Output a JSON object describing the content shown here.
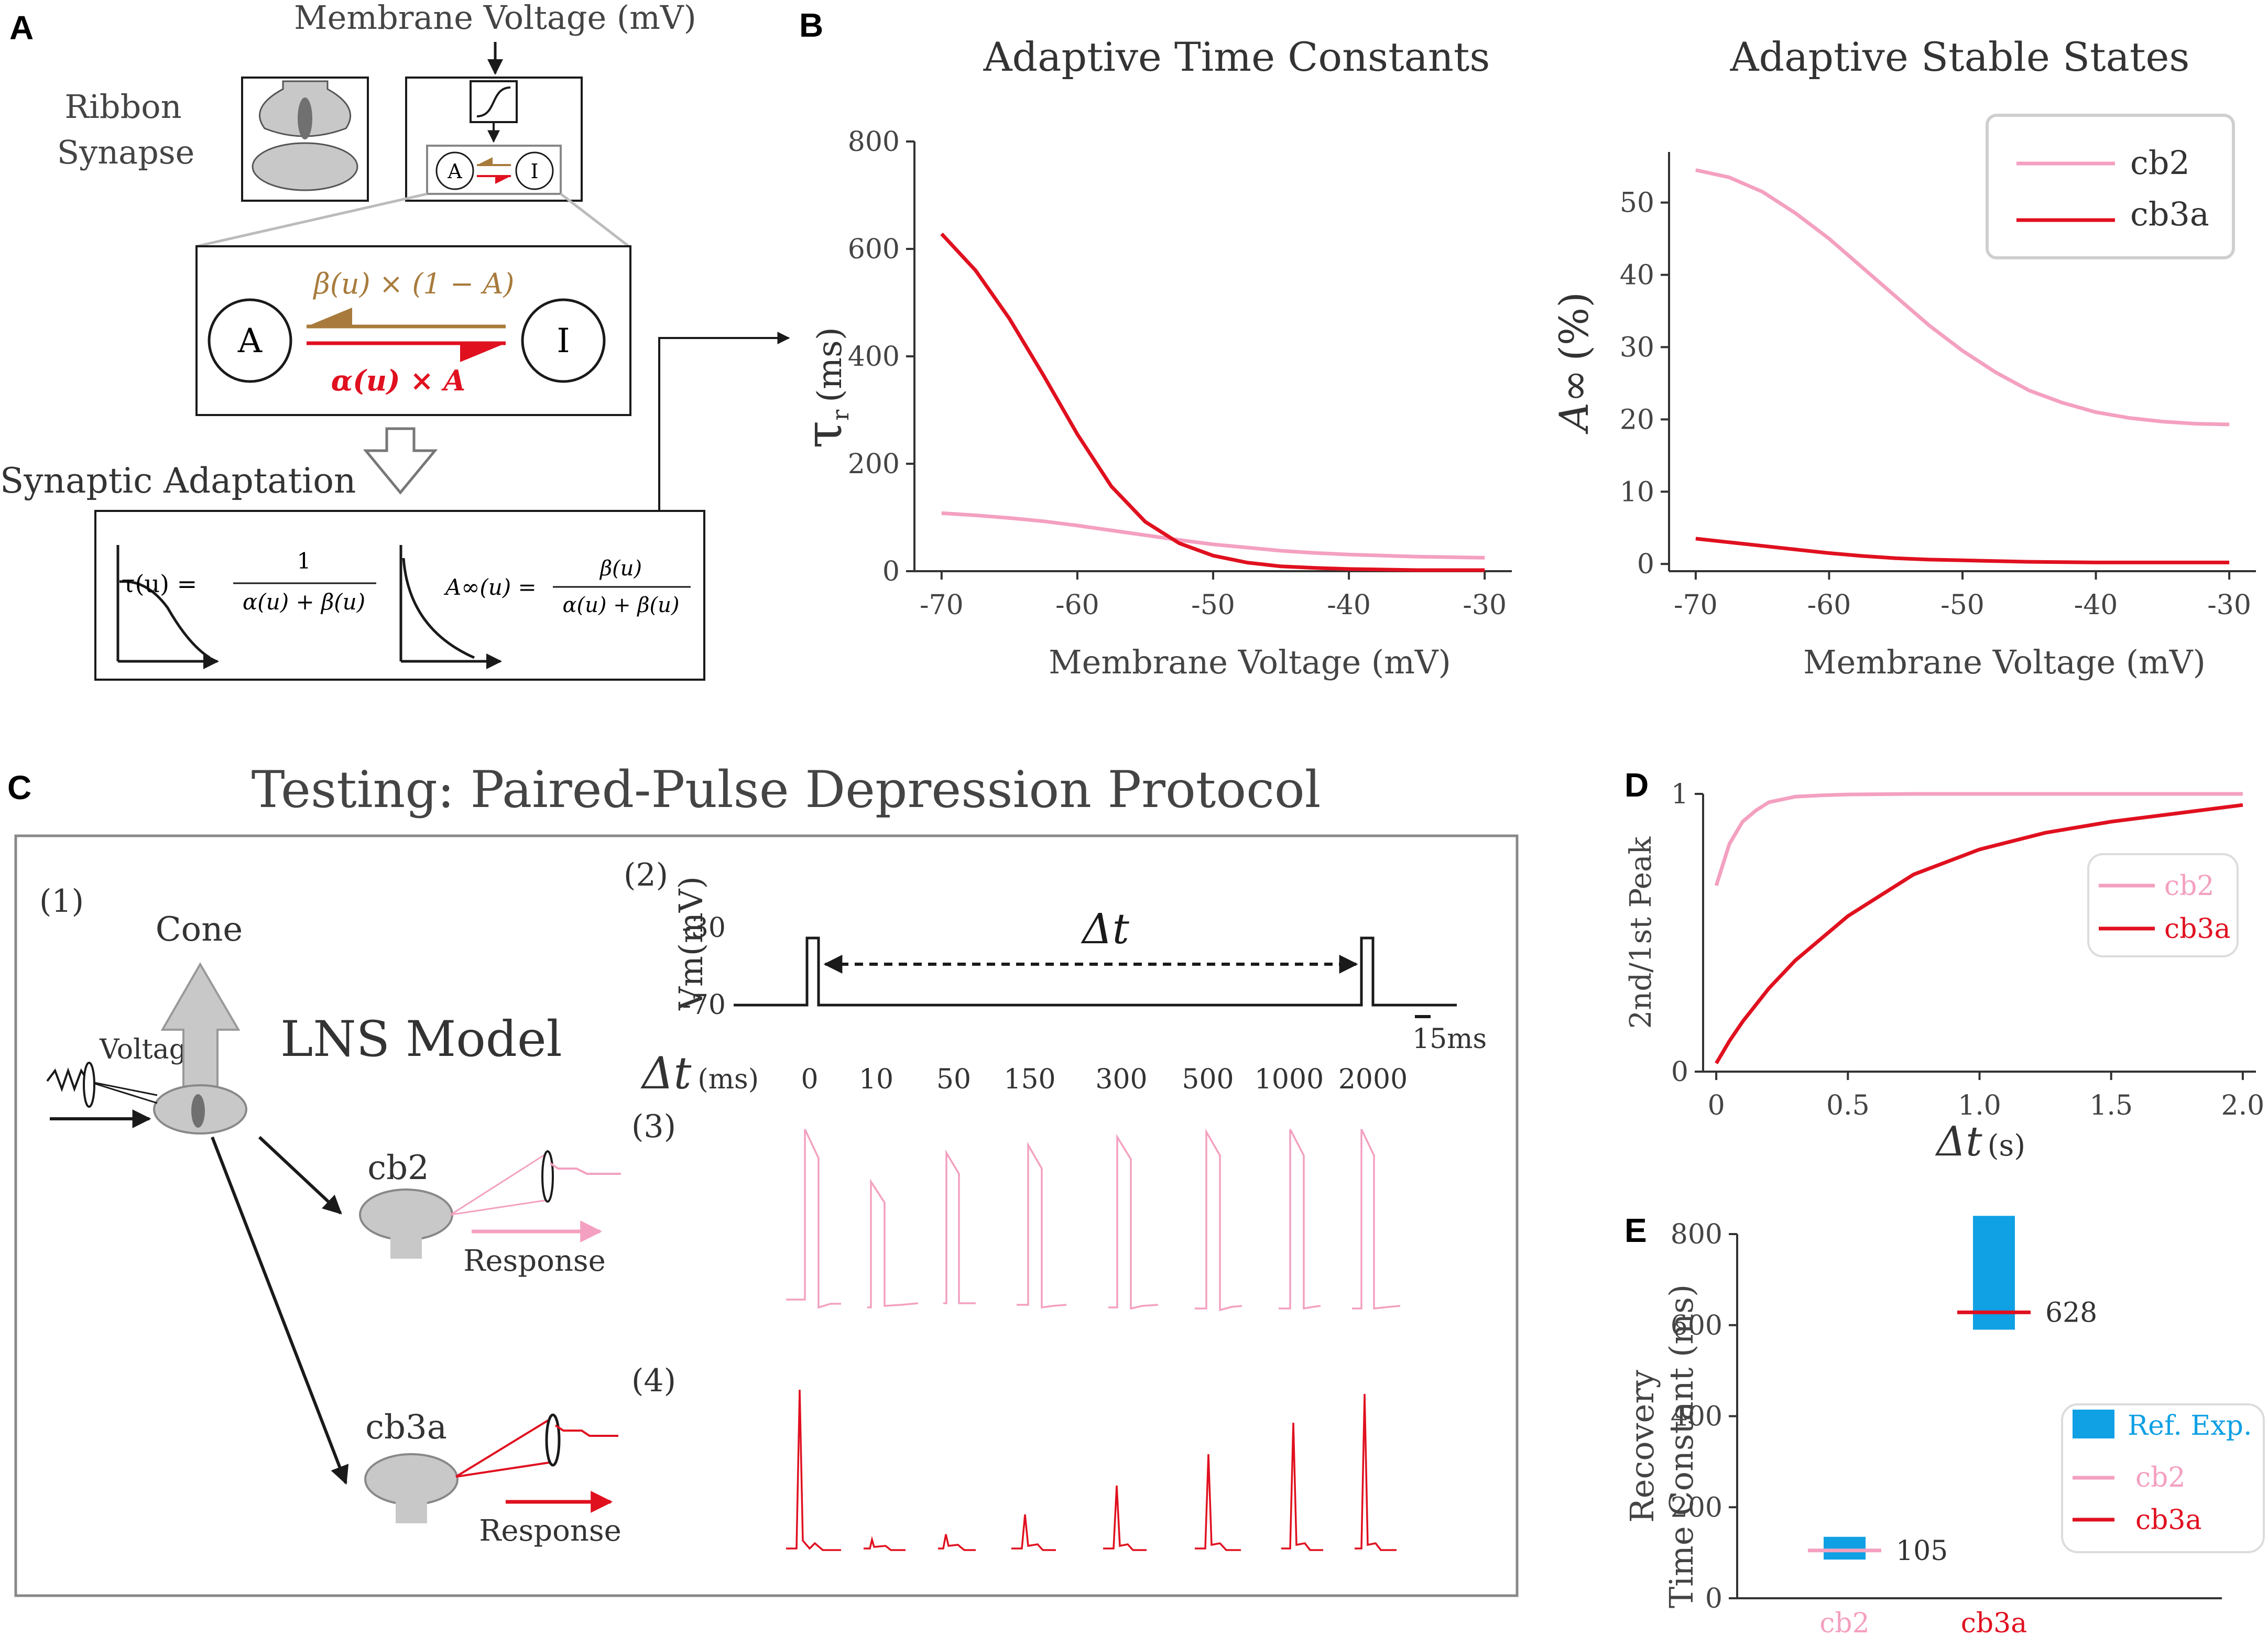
{
  "colors": {
    "cb2": "#f4a0c0",
    "cb3a": "#e0101f",
    "beta": "#a87b3c",
    "ref": "#10a0e4",
    "black": "#1a1a1a",
    "gray": "#c8c8c8"
  },
  "panelA": {
    "letter": "A",
    "membrane_voltage": "Membrane Voltage (mV)",
    "ribbon_line1": "Ribbon",
    "ribbon_line2": "Synapse",
    "state_a": "A",
    "state_i": "I",
    "beta_expr": "β(u) × (1 − A)",
    "alpha_expr": "α(u) × A",
    "synaptic_adaptation": "Synaptic Adaptation",
    "tau_lhs": "τ(u) =",
    "tau_num": "1",
    "tau_den": "α(u) + β(u)",
    "ainf_lhs": "A∞(u) =",
    "ainf_num": "β(u)",
    "ainf_den": "α(u) + β(u)"
  },
  "panelB": {
    "letter": "B",
    "tau_title": "Adaptive Time Constants",
    "tau_ylabel_sym": "τ",
    "tau_ylabel_sub": "r",
    "tau_ylabel_unit": "(ms)",
    "state_title": "Adaptive Stable States",
    "state_ylabel_sym": "A∞",
    "state_ylabel_unit": "(%)",
    "xlabel": "Membrane Voltage (mV)",
    "legend": [
      "cb2",
      "cb3a"
    ]
  },
  "panelC": {
    "letter": "C",
    "title": "Testing: Paired-Pulse Depression Protocol",
    "sub1": "(1)",
    "sub2": "(2)",
    "sub3": "(3)",
    "sub4": "(4)",
    "cone": "Cone",
    "voltage": "Voltage",
    "lns": "LNS Model",
    "cb2": "cb2",
    "cb3a": "cb3a",
    "response": "Response",
    "vm_label": "Vm(mV)",
    "vm_high": "-30",
    "vm_low": "-70",
    "delta_t": "Δt",
    "scale_label": "15ms",
    "dt_axis_sym": "Δt",
    "dt_axis_unit": "(ms)",
    "dt_values": [
      "0",
      "10",
      "50",
      "150",
      "300",
      "500",
      "1000",
      "2000"
    ]
  },
  "panelD": {
    "letter": "D",
    "ylabel": "2nd/1st Peak",
    "xlabel_sym": "Δt",
    "xlabel_unit": "(s)",
    "legend": [
      "cb2",
      "cb3a"
    ]
  },
  "panelE": {
    "letter": "E",
    "ylabel_line1": "Recovery",
    "ylabel_line2": "Time Constant (ms)",
    "legend": [
      "Ref. Exp.",
      "cb2",
      "cb3a"
    ]
  },
  "chart_data": [
    {
      "id": "tau",
      "type": "line",
      "title": "Adaptive Time Constants",
      "xlabel": "Membrane Voltage (mV)",
      "ylabel": "τr (ms)",
      "xlim": [
        -72,
        -28
      ],
      "ylim": [
        0,
        800
      ],
      "xticks": [
        -70,
        -60,
        -50,
        -40,
        -30
      ],
      "yticks": [
        0,
        200,
        400,
        600,
        800
      ],
      "x": [
        -70,
        -67.5,
        -65,
        -62.5,
        -60,
        -57.5,
        -55,
        -52.5,
        -50,
        -47.5,
        -45,
        -42.5,
        -40,
        -37.5,
        -35,
        -32.5,
        -30
      ],
      "series": [
        {
          "name": "cb2",
          "values": [
            108,
            104,
            99,
            93,
            85,
            76,
            67,
            58,
            50,
            44,
            38,
            34,
            31,
            29,
            27,
            26,
            25
          ]
        },
        {
          "name": "cb3a",
          "values": [
            628,
            560,
            470,
            365,
            255,
            158,
            92,
            52,
            29,
            16,
            9,
            6,
            4,
            3,
            2,
            2,
            2
          ]
        }
      ]
    },
    {
      "id": "ainf",
      "type": "line",
      "title": "Adaptive Stable States",
      "xlabel": "Membrane Voltage (mV)",
      "ylabel": "A∞ (%)",
      "xlim": [
        -72,
        -28
      ],
      "ylim": [
        -1,
        57
      ],
      "xticks": [
        -70,
        -60,
        -50,
        -40,
        -30
      ],
      "yticks": [
        0,
        10,
        20,
        30,
        40,
        50
      ],
      "legend": "top-right",
      "x": [
        -70,
        -67.5,
        -65,
        -62.5,
        -60,
        -57.5,
        -55,
        -52.5,
        -50,
        -47.5,
        -45,
        -42.5,
        -40,
        -37.5,
        -35,
        -32.5,
        -30
      ],
      "series": [
        {
          "name": "cb2",
          "values": [
            54.5,
            53.5,
            51.5,
            48.5,
            45,
            41,
            37,
            33,
            29.5,
            26.5,
            24,
            22.3,
            21,
            20.2,
            19.7,
            19.4,
            19.3
          ]
        },
        {
          "name": "cb3a",
          "values": [
            3.5,
            3.0,
            2.5,
            2.0,
            1.5,
            1.1,
            0.8,
            0.6,
            0.5,
            0.4,
            0.3,
            0.25,
            0.2,
            0.2,
            0.2,
            0.2,
            0.2
          ]
        }
      ]
    },
    {
      "id": "ppd",
      "type": "line",
      "title": "",
      "xlabel": "Δt (s)",
      "ylabel": "2nd/1st Peak",
      "xlim": [
        -0.05,
        2.05
      ],
      "ylim": [
        0,
        1
      ],
      "xticks": [
        0,
        0.5,
        1.0,
        1.5,
        2.0
      ],
      "xtick_labels": [
        "0",
        "0.5",
        "1.0",
        "1.5",
        "2.0"
      ],
      "yticks": [
        0,
        1
      ],
      "legend": "center-right",
      "x": [
        0,
        0.05,
        0.1,
        0.15,
        0.2,
        0.25,
        0.3,
        0.4,
        0.5,
        0.75,
        1.0,
        1.25,
        1.5,
        1.75,
        2.0
      ],
      "series": [
        {
          "name": "cb2",
          "values": [
            0.67,
            0.82,
            0.9,
            0.94,
            0.97,
            0.98,
            0.99,
            0.995,
            0.998,
            1.0,
            1.0,
            1.0,
            1.0,
            1.0,
            1.0
          ]
        },
        {
          "name": "cb3a",
          "values": [
            0.03,
            0.11,
            0.18,
            0.24,
            0.3,
            0.35,
            0.4,
            0.48,
            0.56,
            0.71,
            0.8,
            0.86,
            0.9,
            0.93,
            0.96
          ]
        }
      ]
    },
    {
      "id": "recovery",
      "type": "bar",
      "title": "",
      "xlabel": "",
      "ylabel": "Recovery Time Constant (ms)",
      "ylim": [
        0,
        800
      ],
      "yticks": [
        0,
        200,
        400,
        600,
        800
      ],
      "categories": [
        "cb2",
        "cb3a"
      ],
      "ref_ranges": [
        [
          85,
          135
        ],
        [
          590,
          840
        ]
      ],
      "model_values": [
        105,
        628
      ],
      "value_labels": [
        "105",
        "628"
      ]
    }
  ]
}
